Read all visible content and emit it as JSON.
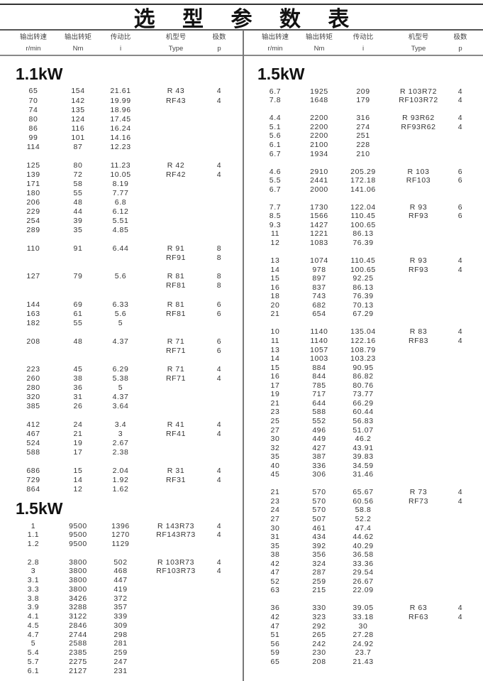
{
  "title": "选 型 参 数 表",
  "headers": [
    {
      "cn": "输出转速",
      "unit": "r/min"
    },
    {
      "cn": "输出转矩",
      "unit": "Nm"
    },
    {
      "cn": "传动比",
      "unit": "i"
    },
    {
      "cn": "机型号",
      "unit": "Type"
    },
    {
      "cn": "极数",
      "unit": "p"
    }
  ],
  "columns": {
    "left": {
      "sections": [
        {
          "power": "1.1kW",
          "groups": [
            [
              [
                "65",
                "154",
                "21.61",
                "R 43",
                "4"
              ],
              [
                "70",
                "142",
                "19.99",
                "RF43",
                "4"
              ],
              [
                "74",
                "135",
                "18.96",
                "",
                ""
              ],
              [
                "80",
                "124",
                "17.45",
                "",
                ""
              ],
              [
                "86",
                "116",
                "16.24",
                "",
                ""
              ],
              [
                "99",
                "101",
                "14.16",
                "",
                ""
              ],
              [
                "114",
                "87",
                "12.23",
                "",
                ""
              ]
            ],
            [
              [
                "125",
                "80",
                "11.23",
                "R 42",
                "4"
              ],
              [
                "139",
                "72",
                "10.05",
                "RF42",
                "4"
              ],
              [
                "171",
                "58",
                "8.19",
                "",
                ""
              ],
              [
                "180",
                "55",
                "7.77",
                "",
                ""
              ],
              [
                "206",
                "48",
                "6.8",
                "",
                ""
              ],
              [
                "229",
                "44",
                "6.12",
                "",
                ""
              ],
              [
                "254",
                "39",
                "5.51",
                "",
                ""
              ],
              [
                "289",
                "35",
                "4.85",
                "",
                ""
              ]
            ],
            [
              [
                "110",
                "91",
                "6.44",
                "R 91",
                "8"
              ],
              [
                "",
                "",
                "",
                "RF91",
                "8"
              ]
            ],
            [
              [
                "127",
                "79",
                "5.6",
                "R 81",
                "8"
              ],
              [
                "",
                "",
                "",
                "RF81",
                "8"
              ]
            ],
            [
              [
                "144",
                "69",
                "6.33",
                "R 81",
                "6"
              ],
              [
                "163",
                "61",
                "5.6",
                "RF81",
                "6"
              ],
              [
                "182",
                "55",
                "5",
                "",
                ""
              ]
            ],
            [
              [
                "208",
                "48",
                "4.37",
                "R 71",
                "6"
              ],
              [
                "",
                "",
                "",
                "RF71",
                "6"
              ]
            ],
            [
              [
                "223",
                "45",
                "6.29",
                "R 71",
                "4"
              ],
              [
                "260",
                "38",
                "5.38",
                "RF71",
                "4"
              ],
              [
                "280",
                "36",
                "5",
                "",
                ""
              ],
              [
                "320",
                "31",
                "4.37",
                "",
                ""
              ],
              [
                "385",
                "26",
                "3.64",
                "",
                ""
              ]
            ],
            [
              [
                "412",
                "24",
                "3.4",
                "R 41",
                "4"
              ],
              [
                "467",
                "21",
                "3",
                "RF41",
                "4"
              ],
              [
                "524",
                "19",
                "2.67",
                "",
                ""
              ],
              [
                "588",
                "17",
                "2.38",
                "",
                ""
              ]
            ],
            [
              [
                "686",
                "15",
                "2.04",
                "R 31",
                "4"
              ],
              [
                "729",
                "14",
                "1.92",
                "RF31",
                "4"
              ],
              [
                "864",
                "12",
                "1.62",
                "",
                ""
              ]
            ]
          ]
        },
        {
          "power": "1.5kW",
          "groups": [
            [
              [
                "1",
                "9500",
                "1396",
                "R 143R73",
                "4"
              ],
              [
                "1.1",
                "9500",
                "1270",
                "RF143R73",
                "4"
              ],
              [
                "1.2",
                "9500",
                "1129",
                "",
                ""
              ]
            ],
            [
              [
                "2.8",
                "3800",
                "502",
                "R 103R73",
                "4"
              ],
              [
                "3",
                "3800",
                "468",
                "RF103R73",
                "4"
              ],
              [
                "3.1",
                "3800",
                "447",
                "",
                ""
              ],
              [
                "3.3",
                "3800",
                "419",
                "",
                ""
              ],
              [
                "3.8",
                "3426",
                "372",
                "",
                ""
              ],
              [
                "3.9",
                "3288",
                "357",
                "",
                ""
              ],
              [
                "4.1",
                "3122",
                "339",
                "",
                ""
              ],
              [
                "4.5",
                "2846",
                "309",
                "",
                ""
              ],
              [
                "4.7",
                "2744",
                "298",
                "",
                ""
              ],
              [
                "5",
                "2588",
                "281",
                "",
                ""
              ],
              [
                "5.4",
                "2385",
                "259",
                "",
                ""
              ],
              [
                "5.7",
                "2275",
                "247",
                "",
                ""
              ],
              [
                "6.1",
                "2127",
                "231",
                "",
                ""
              ]
            ]
          ]
        }
      ]
    },
    "right": {
      "sections": [
        {
          "power": "1.5kW",
          "groups": [
            [
              [
                "6.7",
                "1925",
                "209",
                "R 103R72",
                "4"
              ],
              [
                "7.8",
                "1648",
                "179",
                "RF103R72",
                "4"
              ]
            ],
            [
              [
                "4.4",
                "2200",
                "316",
                "R 93R62",
                "4"
              ],
              [
                "5.1",
                "2200",
                "274",
                "RF93R62",
                "4"
              ],
              [
                "5.6",
                "2200",
                "251",
                "",
                ""
              ],
              [
                "6.1",
                "2100",
                "228",
                "",
                ""
              ],
              [
                "6.7",
                "1934",
                "210",
                "",
                ""
              ]
            ],
            [
              [
                "4.6",
                "2910",
                "205.29",
                "R 103",
                "6"
              ],
              [
                "5.5",
                "2441",
                "172.18",
                "RF103",
                "6"
              ],
              [
                "6.7",
                "2000",
                "141.06",
                "",
                ""
              ]
            ],
            [
              [
                "7.7",
                "1730",
                "122.04",
                "R 93",
                "6"
              ],
              [
                "8.5",
                "1566",
                "110.45",
                "RF93",
                "6"
              ],
              [
                "9.3",
                "1427",
                "100.65",
                "",
                ""
              ],
              [
                "11",
                "1221",
                "86.13",
                "",
                ""
              ],
              [
                "12",
                "1083",
                "76.39",
                "",
                ""
              ]
            ],
            [
              [
                "13",
                "1074",
                "110.45",
                "R 93",
                "4"
              ],
              [
                "14",
                "978",
                "100.65",
                "RF93",
                "4"
              ],
              [
                "15",
                "897",
                "92.25",
                "",
                ""
              ],
              [
                "16",
                "837",
                "86.13",
                "",
                ""
              ],
              [
                "18",
                "743",
                "76.39",
                "",
                ""
              ],
              [
                "20",
                "682",
                "70.13",
                "",
                ""
              ],
              [
                "21",
                "654",
                "67.29",
                "",
                ""
              ]
            ],
            [
              [
                "10",
                "1140",
                "135.04",
                "R 83",
                "4"
              ],
              [
                "11",
                "1140",
                "122.16",
                "RF83",
                "4"
              ],
              [
                "13",
                "1057",
                "108.79",
                "",
                ""
              ],
              [
                "14",
                "1003",
                "103.23",
                "",
                ""
              ],
              [
                "15",
                "884",
                "90.95",
                "",
                ""
              ],
              [
                "16",
                "844",
                "86.82",
                "",
                ""
              ],
              [
                "17",
                "785",
                "80.76",
                "",
                ""
              ],
              [
                "19",
                "717",
                "73.77",
                "",
                ""
              ],
              [
                "21",
                "644",
                "66.29",
                "",
                ""
              ],
              [
                "23",
                "588",
                "60.44",
                "",
                ""
              ],
              [
                "25",
                "552",
                "56.83",
                "",
                ""
              ],
              [
                "27",
                "496",
                "51.07",
                "",
                ""
              ],
              [
                "30",
                "449",
                "46.2",
                "",
                ""
              ],
              [
                "32",
                "427",
                "43.91",
                "",
                ""
              ],
              [
                "35",
                "387",
                "39.83",
                "",
                ""
              ],
              [
                "40",
                "336",
                "34.59",
                "",
                ""
              ],
              [
                "45",
                "306",
                "31.46",
                "",
                ""
              ]
            ],
            [
              [
                "21",
                "570",
                "65.67",
                "R 73",
                "4"
              ],
              [
                "23",
                "570",
                "60.56",
                "RF73",
                "4"
              ],
              [
                "24",
                "570",
                "58.8",
                "",
                ""
              ],
              [
                "27",
                "507",
                "52.2",
                "",
                ""
              ],
              [
                "30",
                "461",
                "47.4",
                "",
                ""
              ],
              [
                "31",
                "434",
                "44.62",
                "",
                ""
              ],
              [
                "35",
                "392",
                "40.29",
                "",
                ""
              ],
              [
                "38",
                "356",
                "36.58",
                "",
                ""
              ],
              [
                "42",
                "324",
                "33.36",
                "",
                ""
              ],
              [
                "47",
                "287",
                "29.54",
                "",
                ""
              ],
              [
                "52",
                "259",
                "26.67",
                "",
                ""
              ],
              [
                "63",
                "215",
                "22.09",
                "",
                ""
              ]
            ],
            [
              [
                "36",
                "330",
                "39.05",
                "R 63",
                "4"
              ],
              [
                "42",
                "323",
                "33.18",
                "RF63",
                "4"
              ],
              [
                "47",
                "292",
                "30",
                "",
                ""
              ],
              [
                "51",
                "265",
                "27.28",
                "",
                ""
              ],
              [
                "56",
                "242",
                "24.92",
                "",
                ""
              ],
              [
                "59",
                "230",
                "23.7",
                "",
                ""
              ],
              [
                "65",
                "208",
                "21.43",
                "",
                ""
              ]
            ]
          ]
        }
      ]
    }
  }
}
